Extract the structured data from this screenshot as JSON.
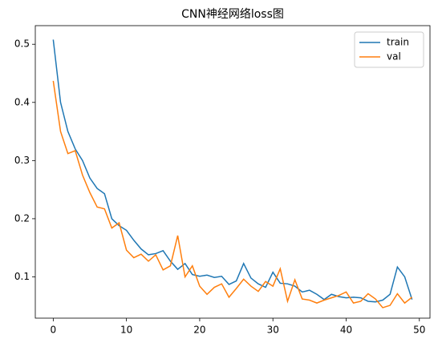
{
  "chart_data": {
    "type": "line",
    "title": "CNN神经网络loss图",
    "x": [
      0,
      1,
      2,
      3,
      4,
      5,
      6,
      7,
      8,
      9,
      10,
      11,
      12,
      13,
      14,
      15,
      16,
      17,
      18,
      19,
      20,
      21,
      22,
      23,
      24,
      25,
      26,
      27,
      28,
      29,
      30,
      31,
      32,
      33,
      34,
      35,
      36,
      37,
      38,
      39,
      40,
      41,
      42,
      43,
      44,
      45,
      46,
      47,
      48,
      49
    ],
    "series": [
      {
        "name": "train",
        "color": "#1f77b4",
        "values": [
          0.508,
          0.4,
          0.35,
          0.32,
          0.3,
          0.27,
          0.252,
          0.243,
          0.2,
          0.188,
          0.18,
          0.163,
          0.148,
          0.138,
          0.14,
          0.145,
          0.127,
          0.113,
          0.123,
          0.104,
          0.101,
          0.103,
          0.099,
          0.101,
          0.087,
          0.093,
          0.123,
          0.098,
          0.088,
          0.082,
          0.108,
          0.089,
          0.088,
          0.084,
          0.074,
          0.077,
          0.07,
          0.061,
          0.07,
          0.066,
          0.064,
          0.065,
          0.064,
          0.058,
          0.057,
          0.06,
          0.07,
          0.117,
          0.1,
          0.061
        ]
      },
      {
        "name": "val",
        "color": "#ff7f0e",
        "values": [
          0.437,
          0.35,
          0.312,
          0.317,
          0.275,
          0.245,
          0.22,
          0.217,
          0.184,
          0.193,
          0.146,
          0.133,
          0.139,
          0.127,
          0.138,
          0.112,
          0.119,
          0.171,
          0.1,
          0.119,
          0.084,
          0.07,
          0.082,
          0.088,
          0.065,
          0.08,
          0.096,
          0.084,
          0.075,
          0.092,
          0.084,
          0.114,
          0.058,
          0.095,
          0.062,
          0.06,
          0.055,
          0.06,
          0.064,
          0.068,
          0.074,
          0.055,
          0.058,
          0.071,
          0.062,
          0.047,
          0.051,
          0.071,
          0.055,
          0.065
        ]
      }
    ],
    "xlim": [
      -2.45,
      51.45
    ],
    "ylim": [
      0.029,
      0.532
    ],
    "xticks": [
      0,
      10,
      20,
      30,
      40,
      50
    ],
    "yticks": [
      0.1,
      0.2,
      0.3,
      0.4,
      0.5
    ],
    "legend": "upper right"
  }
}
